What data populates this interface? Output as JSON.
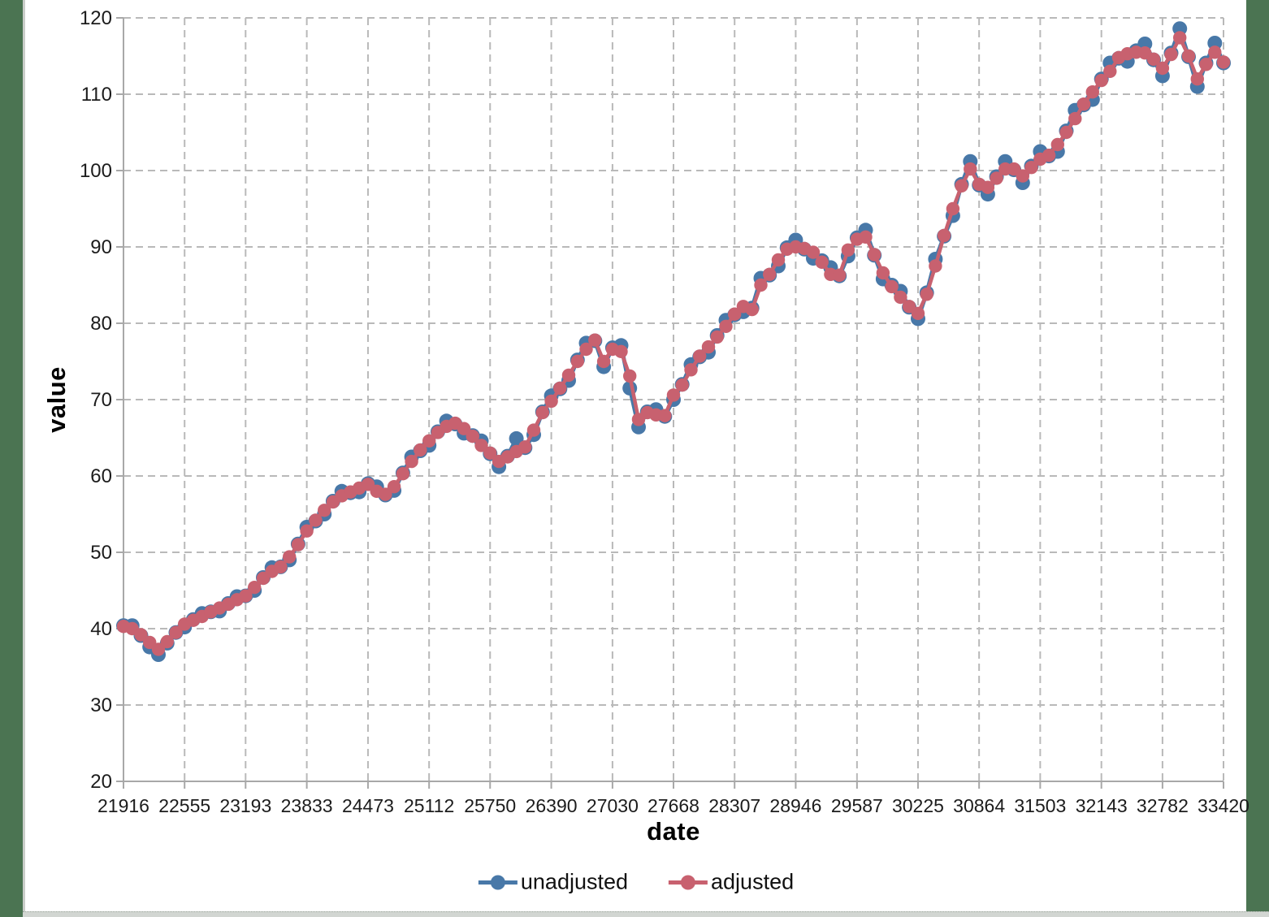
{
  "window": {
    "background_color": "#4b7452",
    "panel_color": "#ffffff",
    "panel_border_color": "#c9cdc9",
    "bottom_strip_color": "#d2d6d2"
  },
  "chart_data": {
    "type": "line",
    "title": "",
    "xlabel": "date",
    "ylabel": "value",
    "xlim": [
      21916,
      33420
    ],
    "ylim": [
      20,
      120
    ],
    "grid": "dashed, both axes",
    "gridline_color": "#b9b9b9",
    "axis_color": "#a8a8a8",
    "tick_label_color": "#1c1c1c",
    "legend_position": "bottom-center",
    "x_ticks": [
      "21916",
      "22555",
      "23193",
      "23833",
      "24473",
      "25112",
      "25750",
      "26390",
      "27030",
      "27668",
      "28307",
      "28946",
      "29587",
      "30225",
      "30864",
      "31503",
      "32143",
      "32782",
      "33420"
    ],
    "y_ticks": [
      20,
      30,
      40,
      50,
      60,
      70,
      80,
      90,
      100,
      110,
      120
    ],
    "x": [
      21916,
      22007,
      22099,
      22190,
      22281,
      22373,
      22464,
      22555,
      22646,
      22738,
      22829,
      22920,
      23012,
      23103,
      23194,
      23286,
      23377,
      23468,
      23559,
      23651,
      23742,
      23833,
      23925,
      24016,
      24107,
      24199,
      24290,
      24381,
      24473,
      24564,
      24655,
      24746,
      24838,
      24929,
      25020,
      25112,
      25203,
      25294,
      25385,
      25477,
      25568,
      25659,
      25750,
      25842,
      25933,
      26025,
      26116,
      26207,
      26298,
      26390,
      26481,
      26572,
      26664,
      26755,
      26846,
      26938,
      27030,
      27120,
      27211,
      27303,
      27394,
      27485,
      27577,
      27668,
      27759,
      27851,
      27942,
      28033,
      28124,
      28216,
      28307,
      28398,
      28490,
      28581,
      28672,
      28764,
      28855,
      28946,
      29037,
      29129,
      29220,
      29311,
      29403,
      29494,
      29587,
      29677,
      29768,
      29859,
      29950,
      30042,
      30133,
      30225,
      30316,
      30407,
      30498,
      30590,
      30681,
      30772,
      30864,
      30955,
      31046,
      31137,
      31229,
      31320,
      31411,
      31503,
      31594,
      31685,
      31776,
      31868,
      31959,
      32050,
      32143,
      32233,
      32324,
      32415,
      32507,
      32598,
      32689,
      32782,
      32872,
      32963,
      33055,
      33146,
      33237,
      33329,
      33420
    ],
    "series": [
      {
        "name": "unadjusted",
        "color": "#4878a8",
        "values": [
          40.4,
          40.4,
          39.1,
          37.6,
          36.6,
          38.1,
          39.5,
          40.2,
          41.2,
          42.0,
          42.2,
          42.3,
          43.3,
          44.2,
          44.3,
          45.0,
          46.7,
          48.0,
          48.1,
          49.0,
          51.1,
          53.3,
          54.1,
          55.0,
          56.7,
          58.0,
          57.8,
          57.9,
          59.0,
          58.6,
          57.5,
          58.1,
          60.4,
          62.5,
          63.3,
          64.0,
          65.8,
          67.2,
          66.8,
          65.6,
          65.3,
          64.6,
          62.9,
          61.2,
          62.6,
          64.9,
          63.7,
          65.4,
          68.4,
          70.5,
          71.4,
          72.5,
          75.2,
          77.4,
          77.7,
          74.3,
          76.8,
          77.1,
          71.5,
          66.4,
          68.4,
          68.7,
          67.8,
          70.0,
          72.0,
          74.6,
          75.6,
          76.2,
          78.4,
          80.4,
          81.1,
          81.5,
          82.0,
          85.9,
          86.3,
          87.5,
          89.9,
          90.9,
          89.7,
          88.5,
          88.2,
          87.3,
          86.2,
          88.8,
          91.2,
          92.2,
          88.9,
          85.8,
          85.0,
          84.2,
          82.1,
          80.6,
          84.0,
          88.4,
          91.4,
          94.1,
          98.2,
          101.2,
          98.1,
          96.9,
          99.2,
          101.2,
          100.1,
          98.4,
          100.6,
          102.5,
          101.9,
          102.5,
          105.2,
          107.9,
          108.6,
          109.3,
          112.0,
          114.1,
          114.7,
          114.3,
          115.7,
          116.6,
          114.5,
          112.4,
          115.4,
          118.6,
          114.9,
          111.0,
          114.1,
          116.7,
          114.1
        ]
      },
      {
        "name": "adjusted",
        "color": "#c8616f",
        "values": [
          40.3,
          40.0,
          39.2,
          38.2,
          37.3,
          38.3,
          39.5,
          40.6,
          41.1,
          41.6,
          42.2,
          42.7,
          43.2,
          43.8,
          44.3,
          45.4,
          46.6,
          47.5,
          48.1,
          49.4,
          51.0,
          52.8,
          54.2,
          55.5,
          56.6,
          57.4,
          57.9,
          58.4,
          58.9,
          58.0,
          57.6,
          58.6,
          60.3,
          61.9,
          63.4,
          64.6,
          65.7,
          66.5,
          66.9,
          66.2,
          65.2,
          64.0,
          63.0,
          61.9,
          62.5,
          63.2,
          63.8,
          66.0,
          68.3,
          69.8,
          71.5,
          73.2,
          75.0,
          76.6,
          77.8,
          75.0,
          76.6,
          76.3,
          73.1,
          67.4,
          68.3,
          68.0,
          67.9,
          70.6,
          71.9,
          73.9,
          75.7,
          76.9,
          78.2,
          79.6,
          81.2,
          82.2,
          81.8,
          85.0,
          86.4,
          88.3,
          89.7,
          90.0,
          89.8,
          89.3,
          88.0,
          86.4,
          86.3,
          89.6,
          91.0,
          91.3,
          89.0,
          86.6,
          84.8,
          83.4,
          82.2,
          81.3,
          83.8,
          87.5,
          91.5,
          95.0,
          98.0,
          100.2,
          98.2,
          97.8,
          99.0,
          100.2,
          100.2,
          99.3,
          100.4,
          101.5,
          102.0,
          103.4,
          105.0,
          106.8,
          108.7,
          110.3,
          111.8,
          113.0,
          114.8,
          115.3,
          115.5,
          115.4,
          114.6,
          113.4,
          115.2,
          117.4,
          115.0,
          112.0,
          113.9,
          115.5,
          114.2
        ]
      }
    ]
  }
}
